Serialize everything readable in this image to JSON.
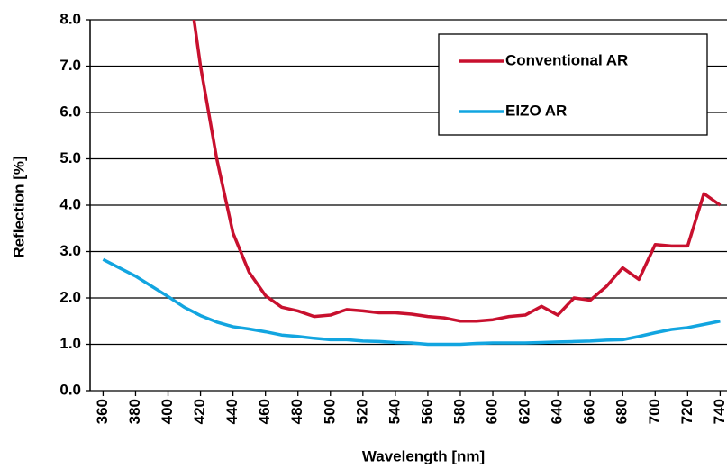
{
  "chart_data": {
    "type": "line",
    "xlabel": "Wavelength [nm]",
    "ylabel": "Reflection [%]",
    "xlim": [
      352,
      742
    ],
    "ylim": [
      0,
      8
    ],
    "xticks": [
      360,
      380,
      400,
      420,
      440,
      460,
      480,
      500,
      520,
      540,
      560,
      580,
      600,
      620,
      640,
      660,
      680,
      700,
      720,
      740
    ],
    "yticks": [
      {
        "value": 0,
        "label": "0.0"
      },
      {
        "value": 1,
        "label": "1.0"
      },
      {
        "value": 2,
        "label": "2.0"
      },
      {
        "value": 3,
        "label": "3.0"
      },
      {
        "value": 4,
        "label": "4.0"
      },
      {
        "value": 5,
        "label": "5.0"
      },
      {
        "value": 6,
        "label": "6.0"
      },
      {
        "value": 7,
        "label": "7.0"
      },
      {
        "value": 8,
        "label": "8.0"
      }
    ],
    "grid": true,
    "legend": "upper right",
    "series": [
      {
        "name": "Conventional AR",
        "color": "#c8102e",
        "x": [
          410,
          420,
          430,
          440,
          450,
          460,
          470,
          480,
          490,
          500,
          510,
          520,
          530,
          540,
          550,
          560,
          570,
          580,
          590,
          600,
          610,
          620,
          630,
          640,
          650,
          660,
          670,
          680,
          690,
          700,
          710,
          720,
          730,
          740
        ],
        "values": [
          9.5,
          7.0,
          5.0,
          3.4,
          2.55,
          2.05,
          1.8,
          1.72,
          1.6,
          1.63,
          1.75,
          1.72,
          1.68,
          1.68,
          1.65,
          1.6,
          1.57,
          1.5,
          1.5,
          1.53,
          1.6,
          1.63,
          1.82,
          1.63,
          2.0,
          1.95,
          2.25,
          2.65,
          2.4,
          3.15,
          3.12,
          3.12,
          4.25,
          4.0
        ]
      },
      {
        "name": "EIZO AR",
        "color": "#12a5e0",
        "x": [
          360,
          370,
          380,
          390,
          400,
          410,
          420,
          430,
          440,
          450,
          460,
          470,
          480,
          490,
          500,
          510,
          520,
          530,
          540,
          550,
          560,
          570,
          580,
          590,
          600,
          610,
          620,
          630,
          640,
          650,
          660,
          670,
          680,
          690,
          700,
          710,
          720,
          730,
          740
        ],
        "values": [
          2.83,
          2.65,
          2.47,
          2.25,
          2.03,
          1.8,
          1.62,
          1.48,
          1.38,
          1.33,
          1.27,
          1.2,
          1.17,
          1.13,
          1.1,
          1.1,
          1.07,
          1.06,
          1.04,
          1.03,
          1.0,
          1.0,
          1.0,
          1.02,
          1.03,
          1.03,
          1.03,
          1.04,
          1.05,
          1.06,
          1.07,
          1.09,
          1.1,
          1.17,
          1.25,
          1.32,
          1.36,
          1.43,
          1.5
        ]
      }
    ]
  }
}
